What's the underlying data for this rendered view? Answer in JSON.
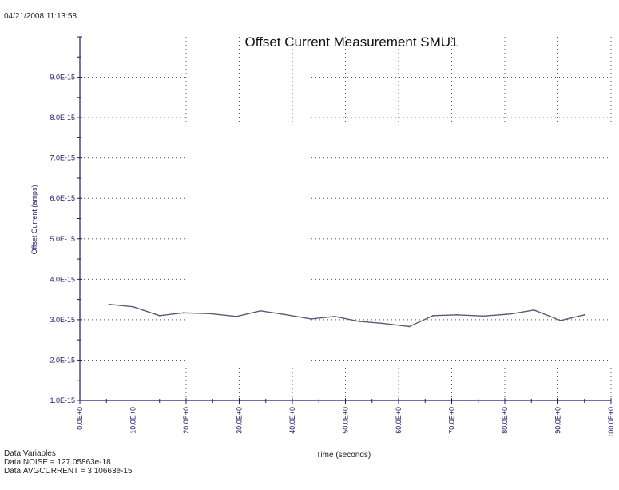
{
  "timestamp": "04/21/2008 11:13:58",
  "chart_data": {
    "type": "line",
    "title": "Offset Current Measurement SMU1",
    "xlabel": "Time (seconds)",
    "ylabel": "Offset Current (amps)",
    "xlim": [
      0,
      100
    ],
    "ylim": [
      1e-15,
      1e-14
    ],
    "x_ticks": [
      0,
      10,
      20,
      30,
      40,
      50,
      60,
      70,
      80,
      90,
      100
    ],
    "x_tick_labels": [
      "0.0E+0",
      "10.0E+0",
      "20.0E+0",
      "30.0E+0",
      "40.0E+0",
      "50.0E+0",
      "60.0E+0",
      "70.0E+0",
      "80.0E+0",
      "90.0E+0",
      "100.0E+0"
    ],
    "y_ticks": [
      1e-15,
      2e-15,
      3e-15,
      4e-15,
      5e-15,
      6e-15,
      7e-15,
      8e-15,
      9e-15
    ],
    "y_tick_labels": [
      "1.0E-15",
      "2.0E-15",
      "3.0E-15",
      "4.0E-15",
      "5.0E-15",
      "6.0E-15",
      "7.0E-15",
      "8.0E-15",
      "9.0E-15"
    ],
    "grid": true,
    "grid_style": "dotted",
    "series": [
      {
        "color": "#5a5a78",
        "x": [
          5.5,
          10,
          15,
          19.5,
          24.5,
          29.5,
          34,
          38.5,
          43.5,
          48,
          52.5,
          57,
          62,
          66.5,
          71,
          76,
          81,
          85.5,
          90.5,
          95
        ],
        "values": [
          3.38e-15,
          3.32e-15,
          3.1e-15,
          3.17e-15,
          3.15e-15,
          3.08e-15,
          3.22e-15,
          3.13e-15,
          3.02e-15,
          3.08e-15,
          2.96e-15,
          2.91e-15,
          2.83e-15,
          3.1e-15,
          3.12e-15,
          3.09e-15,
          3.14e-15,
          3.24e-15,
          2.98e-15,
          3.12e-15
        ]
      }
    ]
  },
  "data_variables": {
    "heading": "Data Variables",
    "noise": "Data:NOISE = 127.05863e-18",
    "avg_current": "Data:AVGCURRENT = 3.10663e-15"
  },
  "colors": {
    "axis": "#1c1c6e",
    "grid": "#555555",
    "line": "#5a5a78"
  }
}
